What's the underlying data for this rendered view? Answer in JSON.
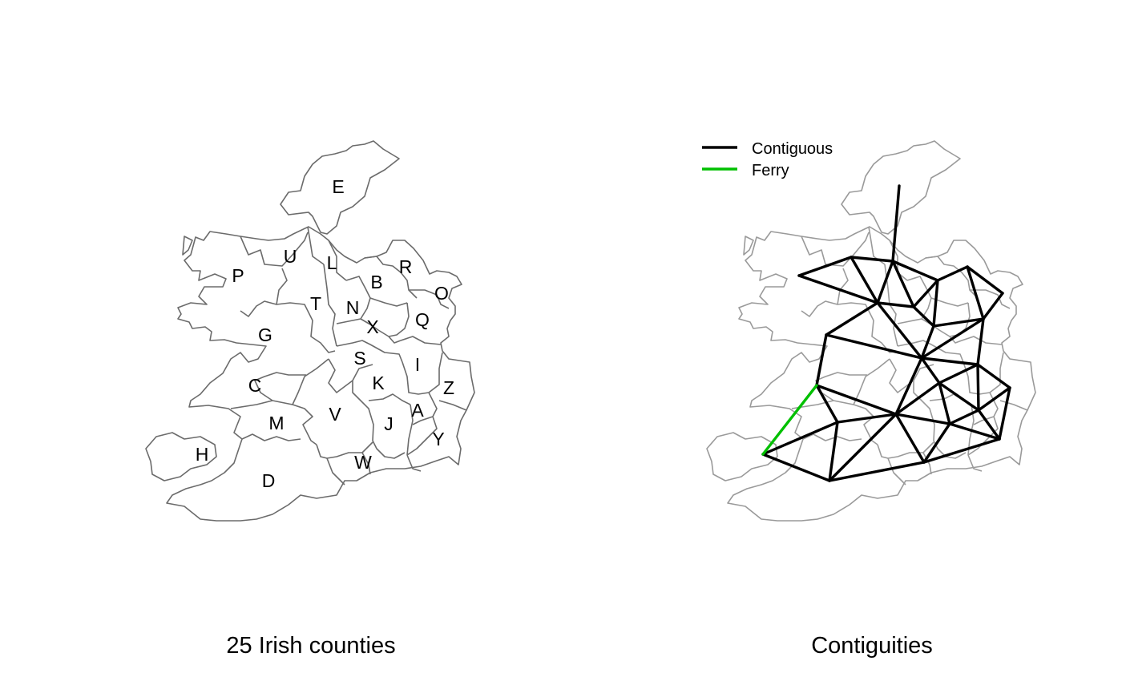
{
  "panels": [
    {
      "title": "25 Irish counties"
    },
    {
      "title": "Contiguities"
    }
  ],
  "legend": {
    "entries": [
      {
        "label": "Contiguous",
        "color": "#000000"
      },
      {
        "label": "Ferry",
        "color": "#00c000"
      }
    ]
  },
  "counties": [
    {
      "letter": "A"
    },
    {
      "letter": "B"
    },
    {
      "letter": "C"
    },
    {
      "letter": "D"
    },
    {
      "letter": "E"
    },
    {
      "letter": "G"
    },
    {
      "letter": "H"
    },
    {
      "letter": "I"
    },
    {
      "letter": "J"
    },
    {
      "letter": "K"
    },
    {
      "letter": "L"
    },
    {
      "letter": "M"
    },
    {
      "letter": "N"
    },
    {
      "letter": "O"
    },
    {
      "letter": "P"
    },
    {
      "letter": "Q"
    },
    {
      "letter": "R"
    },
    {
      "letter": "S"
    },
    {
      "letter": "T"
    },
    {
      "letter": "U"
    },
    {
      "letter": "V"
    },
    {
      "letter": "W"
    },
    {
      "letter": "X"
    },
    {
      "letter": "Y"
    },
    {
      "letter": "Z"
    }
  ],
  "contiguities": {
    "contiguous": [
      [
        "E",
        "L"
      ],
      [
        "P",
        "U"
      ],
      [
        "P",
        "T"
      ],
      [
        "U",
        "L"
      ],
      [
        "U",
        "T"
      ],
      [
        "L",
        "T"
      ],
      [
        "L",
        "B"
      ],
      [
        "L",
        "N"
      ],
      [
        "B",
        "R"
      ],
      [
        "B",
        "N"
      ],
      [
        "B",
        "X"
      ],
      [
        "R",
        "O"
      ],
      [
        "R",
        "Q"
      ],
      [
        "O",
        "Q"
      ],
      [
        "T",
        "N"
      ],
      [
        "N",
        "X"
      ],
      [
        "T",
        "G"
      ],
      [
        "T",
        "S"
      ],
      [
        "X",
        "S"
      ],
      [
        "X",
        "Q"
      ],
      [
        "Q",
        "S"
      ],
      [
        "Q",
        "I"
      ],
      [
        "G",
        "S"
      ],
      [
        "G",
        "C"
      ],
      [
        "S",
        "I"
      ],
      [
        "S",
        "K"
      ],
      [
        "S",
        "V"
      ],
      [
        "I",
        "K"
      ],
      [
        "I",
        "Z"
      ],
      [
        "I",
        "A"
      ],
      [
        "C",
        "V"
      ],
      [
        "C",
        "M"
      ],
      [
        "K",
        "V"
      ],
      [
        "K",
        "J"
      ],
      [
        "K",
        "A"
      ],
      [
        "Z",
        "A"
      ],
      [
        "Z",
        "Y"
      ],
      [
        "A",
        "Y"
      ],
      [
        "A",
        "J"
      ],
      [
        "J",
        "Y"
      ],
      [
        "J",
        "V"
      ],
      [
        "J",
        "W"
      ],
      [
        "V",
        "M"
      ],
      [
        "V",
        "W"
      ],
      [
        "V",
        "D"
      ],
      [
        "M",
        "H"
      ],
      [
        "M",
        "D"
      ],
      [
        "H",
        "D"
      ],
      [
        "D",
        "W"
      ],
      [
        "W",
        "Y"
      ]
    ],
    "ferry": [
      [
        "C",
        "H"
      ]
    ]
  }
}
